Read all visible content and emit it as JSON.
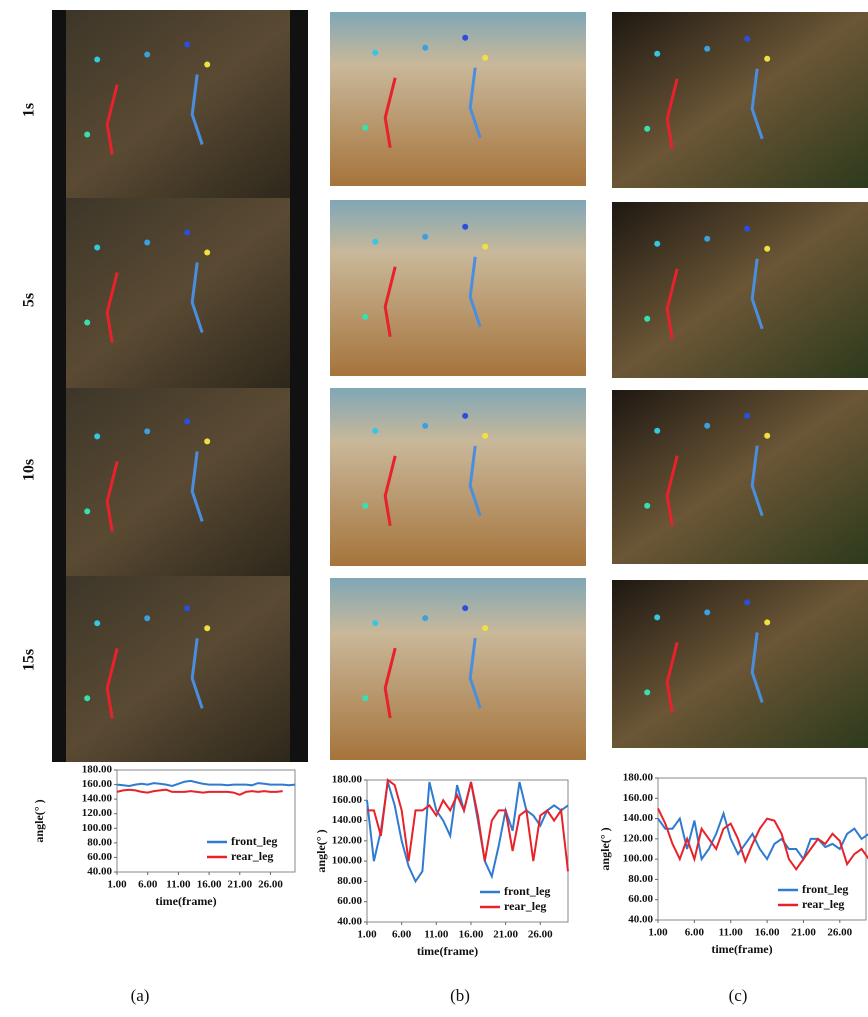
{
  "row_labels": [
    "1s",
    "5s",
    "10s",
    "15s"
  ],
  "panel_labels": [
    "(a)",
    "(b)",
    "(c)"
  ],
  "chart_data": [
    {
      "type": "line",
      "xlabel": "time(frame)",
      "ylabel": "angle(° )",
      "x": [
        1,
        2,
        3,
        4,
        5,
        6,
        7,
        8,
        9,
        10,
        11,
        12,
        13,
        14,
        15,
        16,
        17,
        18,
        19,
        20,
        21,
        22,
        23,
        24,
        25,
        26,
        27,
        28,
        29,
        30
      ],
      "xlim": [
        1,
        30
      ],
      "ylim": [
        40,
        180
      ],
      "xticks": [
        {
          "value": 1,
          "label": "1.00"
        },
        {
          "value": 6,
          "label": "6.00"
        },
        {
          "value": 11,
          "label": "11.00"
        },
        {
          "value": 16,
          "label": "16.00"
        },
        {
          "value": 21,
          "label": "21.00"
        },
        {
          "value": 26,
          "label": "26.00"
        }
      ],
      "yticks": [
        {
          "value": 40,
          "label": "40.00"
        },
        {
          "value": 60,
          "label": "60.00"
        },
        {
          "value": 80,
          "label": "80.00"
        },
        {
          "value": 100,
          "label": "100.00"
        },
        {
          "value": 120,
          "label": "120.00"
        },
        {
          "value": 140,
          "label": "140.00"
        },
        {
          "value": 160,
          "label": "160.00"
        },
        {
          "value": 180,
          "label": "180.00"
        }
      ],
      "legend": "lower right",
      "series": [
        {
          "name": "front_leg",
          "color": "#2e7bd1",
          "values": [
            160,
            159,
            158,
            160,
            161,
            160,
            162,
            161,
            160,
            158,
            161,
            164,
            165,
            163,
            161,
            160,
            160,
            160,
            159,
            160,
            160,
            160,
            159,
            162,
            161,
            160,
            160,
            160,
            159,
            160
          ]
        },
        {
          "name": "rear_leg",
          "color": "#e8222a",
          "values": [
            150,
            152,
            153,
            152,
            150,
            149,
            151,
            152,
            153,
            150,
            150,
            150,
            151,
            150,
            149,
            150,
            150,
            150,
            150,
            149,
            146,
            150,
            151,
            150,
            151,
            150,
            150,
            151,
            null,
            null
          ]
        }
      ]
    },
    {
      "type": "line",
      "xlabel": "time(frame)",
      "ylabel": "angle(° )",
      "x": [
        1,
        2,
        3,
        4,
        5,
        6,
        7,
        8,
        9,
        10,
        11,
        12,
        13,
        14,
        15,
        16,
        17,
        18,
        19,
        20,
        21,
        22,
        23,
        24,
        25,
        26,
        27,
        28,
        29,
        30
      ],
      "xlim": [
        1,
        30
      ],
      "ylim": [
        40,
        180
      ],
      "xticks": [
        {
          "value": 1,
          "label": "1.00"
        },
        {
          "value": 6,
          "label": "6.00"
        },
        {
          "value": 11,
          "label": "11.00"
        },
        {
          "value": 16,
          "label": "16.00"
        },
        {
          "value": 21,
          "label": "21.00"
        },
        {
          "value": 26,
          "label": "26.00"
        }
      ],
      "yticks": [
        {
          "value": 40,
          "label": "40.00"
        },
        {
          "value": 60,
          "label": "60.00"
        },
        {
          "value": 80,
          "label": "80.00"
        },
        {
          "value": 100,
          "label": "100.00"
        },
        {
          "value": 120,
          "label": "120.00"
        },
        {
          "value": 140,
          "label": "140.00"
        },
        {
          "value": 160,
          "label": "160.00"
        },
        {
          "value": 180,
          "label": "180.00"
        }
      ],
      "legend": "lower right",
      "series": [
        {
          "name": "front_leg",
          "color": "#2e7bd1",
          "values": [
            160,
            100,
            130,
            178,
            155,
            120,
            95,
            80,
            90,
            178,
            150,
            140,
            125,
            175,
            150,
            178,
            140,
            100,
            85,
            115,
            150,
            130,
            178,
            150,
            145,
            135,
            150,
            155,
            150,
            155
          ]
        },
        {
          "name": "rear_leg",
          "color": "#e8222a",
          "values": [
            150,
            150,
            125,
            180,
            175,
            150,
            100,
            150,
            150,
            155,
            145,
            160,
            150,
            165,
            150,
            178,
            145,
            100,
            140,
            150,
            150,
            110,
            145,
            150,
            100,
            145,
            150,
            140,
            150,
            90
          ]
        }
      ]
    },
    {
      "type": "line",
      "xlabel": "time(frame)",
      "ylabel": "angle(° )",
      "x": [
        1,
        2,
        3,
        4,
        5,
        6,
        7,
        8,
        9,
        10,
        11,
        12,
        13,
        14,
        15,
        16,
        17,
        18,
        19,
        20,
        21,
        22,
        23,
        24,
        25,
        26,
        27,
        28,
        29,
        30
      ],
      "xlim": [
        1,
        30
      ],
      "ylim": [
        40,
        180
      ],
      "xticks": [
        {
          "value": 1,
          "label": "1.00"
        },
        {
          "value": 6,
          "label": "6.00"
        },
        {
          "value": 11,
          "label": "11.00"
        },
        {
          "value": 16,
          "label": "16.00"
        },
        {
          "value": 21,
          "label": "21.00"
        },
        {
          "value": 26,
          "label": "26.00"
        }
      ],
      "yticks": [
        {
          "value": 40,
          "label": "40.00"
        },
        {
          "value": 60,
          "label": "60.00"
        },
        {
          "value": 80,
          "label": "80.00"
        },
        {
          "value": 100,
          "label": "100.00"
        },
        {
          "value": 120,
          "label": "120.00"
        },
        {
          "value": 140,
          "label": "140.00"
        },
        {
          "value": 160,
          "label": "160.00"
        },
        {
          "value": 180,
          "label": "180.00"
        }
      ],
      "legend": "lower right",
      "series": [
        {
          "name": "front_leg",
          "color": "#2e7bd1",
          "values": [
            140,
            130,
            130,
            140,
            110,
            138,
            100,
            110,
            125,
            145,
            120,
            105,
            115,
            125,
            110,
            100,
            115,
            120,
            110,
            110,
            100,
            120,
            120,
            112,
            115,
            110,
            125,
            130,
            120,
            125
          ]
        },
        {
          "name": "rear_leg",
          "color": "#e8222a",
          "values": [
            150,
            135,
            115,
            100,
            120,
            100,
            130,
            120,
            110,
            130,
            135,
            120,
            98,
            115,
            130,
            140,
            138,
            125,
            100,
            90,
            100,
            110,
            120,
            115,
            125,
            118,
            95,
            105,
            110,
            100
          ]
        }
      ]
    }
  ]
}
